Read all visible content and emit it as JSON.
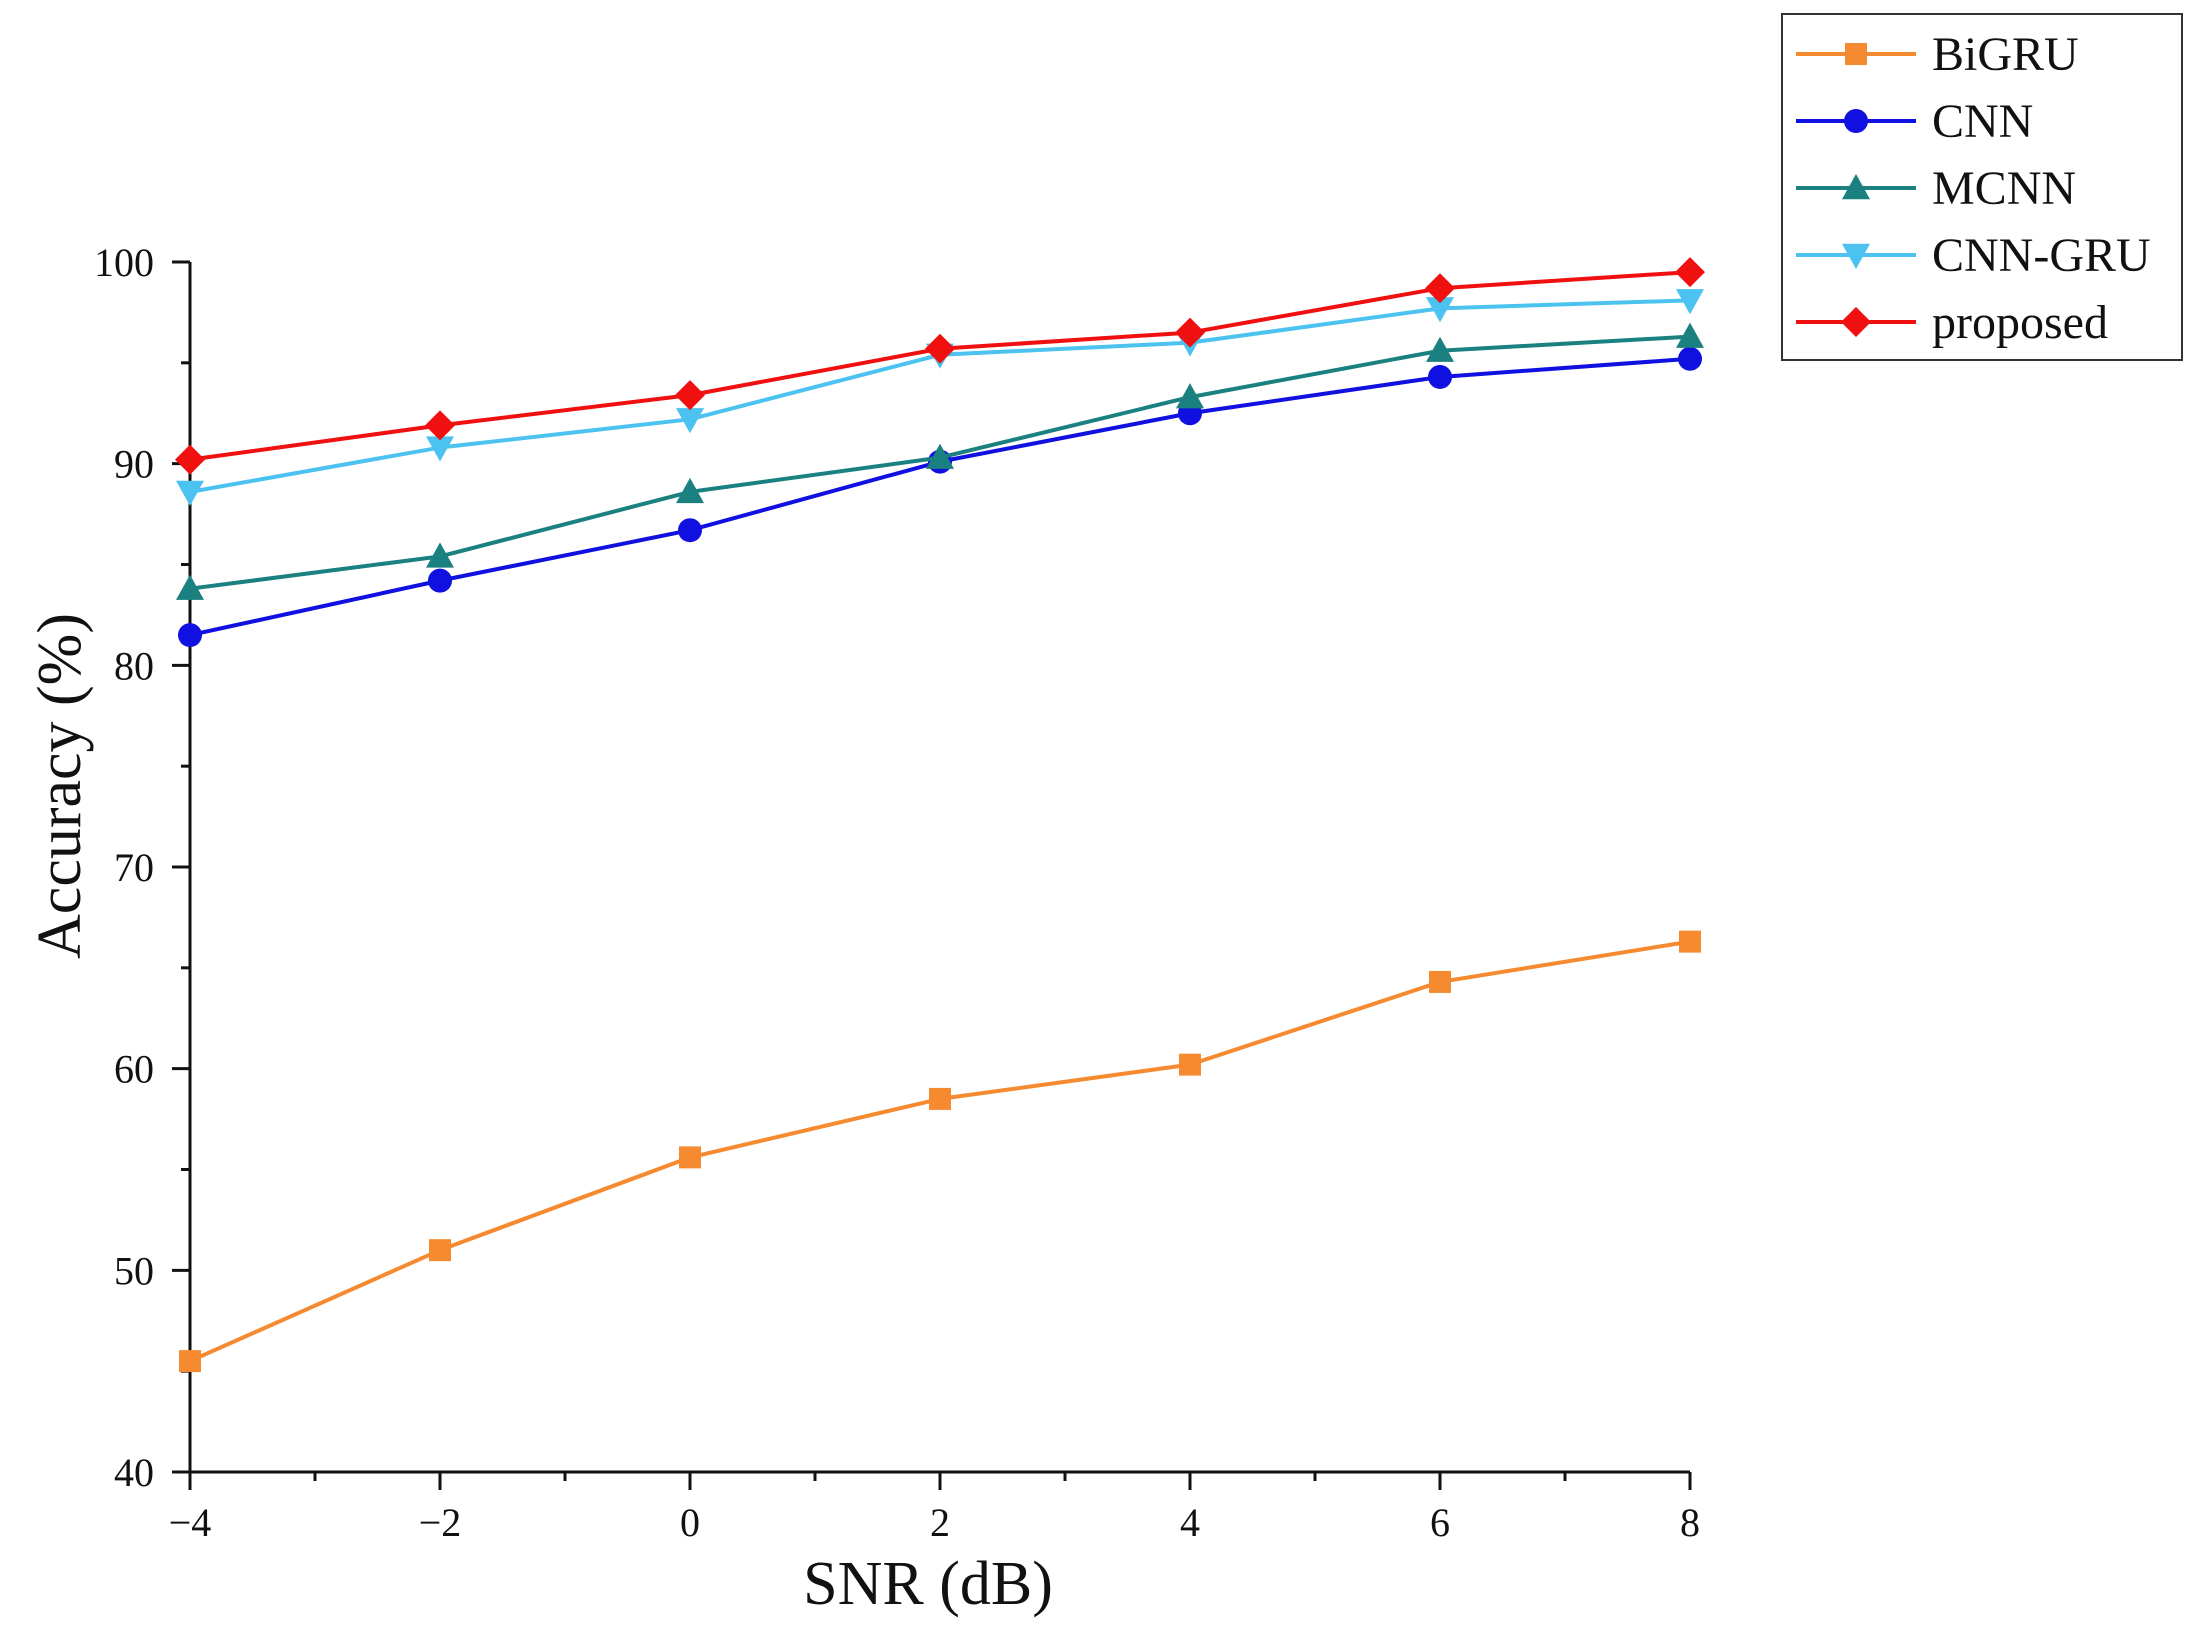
{
  "chart_data": {
    "type": "line",
    "title": "",
    "xlabel": "SNR (dB)",
    "ylabel": "Accuracy (%)",
    "x": [
      -4,
      -2,
      0,
      2,
      4,
      6,
      8
    ],
    "x_tick_labels": [
      "−4",
      "−2",
      "0",
      "2",
      "4",
      "6",
      "8"
    ],
    "y_tick_labels": [
      "40",
      "50",
      "60",
      "70",
      "80",
      "90",
      "100"
    ],
    "xlim": [
      -4,
      8
    ],
    "ylim": [
      40,
      100
    ],
    "grid": false,
    "legend_position": "top-right, outside plot",
    "series": [
      {
        "name": "BiGRU",
        "color": "#f58a30",
        "marker": "square",
        "values": [
          45.5,
          51.0,
          55.6,
          58.5,
          60.2,
          64.3,
          66.3
        ]
      },
      {
        "name": "CNN",
        "color": "#1010e0",
        "marker": "circle",
        "values": [
          81.5,
          84.2,
          86.7,
          90.1,
          92.5,
          94.3,
          95.2
        ]
      },
      {
        "name": "MCNN",
        "color": "#1a8080",
        "marker": "triangle-up",
        "values": [
          83.8,
          85.4,
          88.6,
          90.3,
          93.3,
          95.6,
          96.3
        ]
      },
      {
        "name": "CNN-GRU",
        "color": "#4cc2f0",
        "marker": "triangle-down",
        "values": [
          88.6,
          90.8,
          92.2,
          95.4,
          96.0,
          97.7,
          98.1
        ]
      },
      {
        "name": "proposed",
        "color": "#f01010",
        "marker": "diamond",
        "values": [
          90.2,
          91.9,
          93.4,
          95.7,
          96.5,
          98.7,
          99.5
        ]
      }
    ]
  }
}
